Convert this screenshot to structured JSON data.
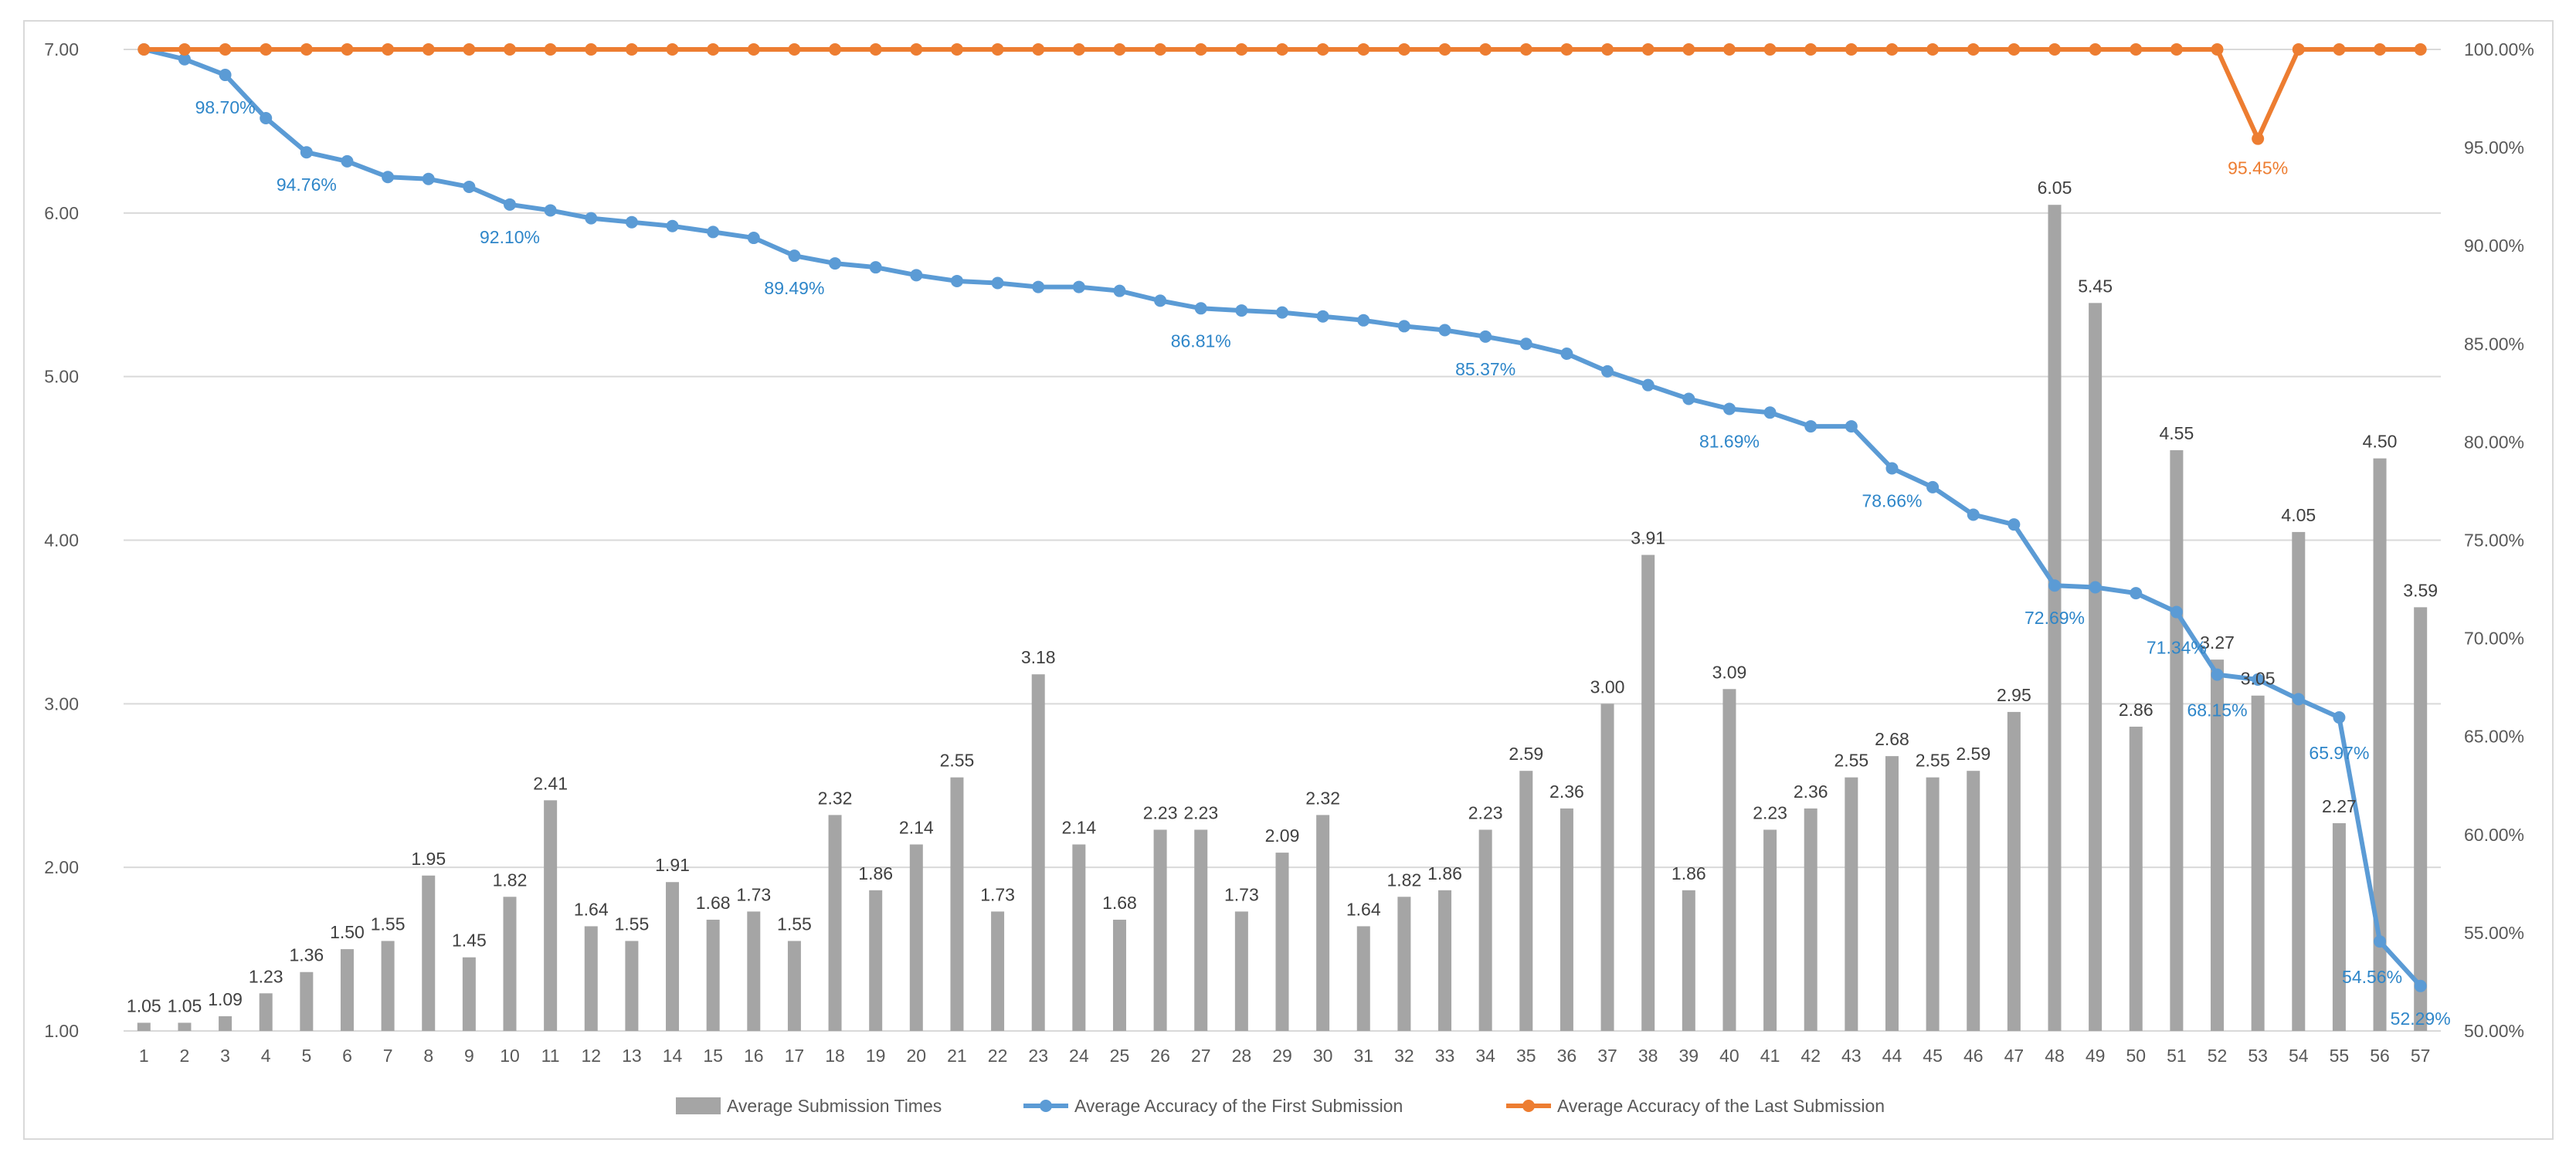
{
  "chart_data": {
    "type": "bar",
    "title": "",
    "categories": [
      "1",
      "2",
      "3",
      "4",
      "5",
      "6",
      "7",
      "8",
      "9",
      "10",
      "11",
      "12",
      "13",
      "14",
      "15",
      "16",
      "17",
      "18",
      "19",
      "20",
      "21",
      "22",
      "23",
      "24",
      "25",
      "26",
      "27",
      "28",
      "29",
      "30",
      "31",
      "32",
      "33",
      "34",
      "35",
      "36",
      "37",
      "38",
      "39",
      "40",
      "41",
      "42",
      "43",
      "44",
      "45",
      "46",
      "47",
      "48",
      "49",
      "50",
      "51",
      "52",
      "53",
      "54",
      "55",
      "56",
      "57"
    ],
    "y_left": {
      "min": 1.0,
      "max": 7.0,
      "step": 1.0,
      "ticks": [
        "1.00",
        "2.00",
        "3.00",
        "4.00",
        "5.00",
        "6.00",
        "7.00"
      ]
    },
    "y_right": {
      "min": 50,
      "max": 100,
      "step": 5,
      "ticks": [
        "50.00%",
        "55.00%",
        "60.00%",
        "65.00%",
        "70.00%",
        "75.00%",
        "80.00%",
        "85.00%",
        "90.00%",
        "95.00%",
        "100.00%"
      ]
    },
    "grid": true,
    "legend_position": "bottom",
    "colors": {
      "bars": "#a5a5a5",
      "first": "#5b9bd5",
      "last": "#ed7d31",
      "first_label": "#2e86c9",
      "last_label": "#ed7d31",
      "grid": "#d9d9d9"
    },
    "series": [
      {
        "name": "Average Submission Times",
        "type": "bar",
        "axis": "left",
        "values": [
          1.05,
          1.05,
          1.09,
          1.23,
          1.36,
          1.5,
          1.55,
          1.95,
          1.45,
          1.82,
          2.41,
          1.64,
          1.55,
          1.91,
          1.68,
          1.73,
          1.55,
          2.32,
          1.86,
          2.14,
          2.55,
          1.73,
          3.18,
          2.14,
          1.68,
          2.23,
          2.23,
          1.73,
          2.09,
          2.32,
          1.64,
          1.82,
          1.86,
          2.23,
          2.59,
          2.36,
          3.0,
          3.91,
          1.86,
          3.09,
          2.23,
          2.36,
          2.55,
          2.68,
          2.55,
          2.59,
          2.95,
          6.05,
          5.45,
          2.86,
          4.55,
          3.27,
          3.05,
          4.05,
          2.27,
          4.5,
          3.59
        ],
        "labels": [
          "1.05",
          "1.05",
          "1.09",
          "1.23",
          "1.36",
          "1.50",
          "1.55",
          "1.95",
          "1.45",
          "1.82",
          "2.41",
          "1.64",
          "1.55",
          "1.91",
          "1.68",
          "1.73",
          "1.55",
          "2.32",
          "1.86",
          "2.14",
          "2.55",
          "1.73",
          "3.18",
          "2.14",
          "1.68",
          "2.23",
          "2.23",
          "1.73",
          "2.09",
          "2.32",
          "1.64",
          "1.82",
          "1.86",
          "2.23",
          "2.59",
          "2.36",
          "3.00",
          "3.91",
          "1.86",
          "3.09",
          "2.23",
          "2.36",
          "2.55",
          "2.68",
          "2.55",
          "2.59",
          "2.95",
          "6.05",
          "5.45",
          "2.86",
          "4.55",
          "3.27",
          "3.05",
          "4.05",
          "2.27",
          "4.50",
          "3.59"
        ]
      },
      {
        "name": "Average Accuracy of the First Submission",
        "type": "line",
        "axis": "right",
        "values": [
          100.0,
          99.5,
          98.7,
          96.5,
          94.76,
          94.3,
          93.5,
          93.4,
          93.0,
          92.1,
          91.8,
          91.4,
          91.2,
          91.0,
          90.7,
          90.4,
          89.49,
          89.1,
          88.9,
          88.5,
          88.2,
          88.1,
          87.9,
          87.9,
          87.7,
          87.2,
          86.81,
          86.7,
          86.6,
          86.4,
          86.2,
          85.9,
          85.7,
          85.37,
          85.0,
          84.5,
          83.6,
          82.9,
          82.2,
          81.69,
          81.5,
          80.8,
          80.8,
          78.66,
          77.7,
          76.3,
          75.8,
          72.69,
          72.6,
          72.3,
          71.34,
          68.15,
          67.9,
          66.9,
          65.97,
          54.56,
          52.29
        ],
        "annotations": [
          {
            "index": 2,
            "label": "98.70%"
          },
          {
            "index": 4,
            "label": "94.76%"
          },
          {
            "index": 9,
            "label": "92.10%"
          },
          {
            "index": 16,
            "label": "89.49%"
          },
          {
            "index": 26,
            "label": "86.81%"
          },
          {
            "index": 33,
            "label": "85.37%"
          },
          {
            "index": 39,
            "label": "81.69%"
          },
          {
            "index": 43,
            "label": "78.66%"
          },
          {
            "index": 47,
            "label": "72.69%"
          },
          {
            "index": 50,
            "label": "71.34%"
          },
          {
            "index": 51,
            "label": "68.15%"
          },
          {
            "index": 54,
            "label": "65.97%"
          },
          {
            "index": 55,
            "label": "54.56%"
          },
          {
            "index": 56,
            "label": "52.29%"
          }
        ]
      },
      {
        "name": "Average Accuracy of the Last Submission",
        "type": "line",
        "axis": "right",
        "values": [
          100,
          100,
          100,
          100,
          100,
          100,
          100,
          100,
          100,
          100,
          100,
          100,
          100,
          100,
          100,
          100,
          100,
          100,
          100,
          100,
          100,
          100,
          100,
          100,
          100,
          100,
          100,
          100,
          100,
          100,
          100,
          100,
          100,
          100,
          100,
          100,
          100,
          100,
          100,
          100,
          100,
          100,
          100,
          100,
          100,
          100,
          100,
          100,
          100,
          100,
          100,
          100,
          95.45,
          100,
          100,
          100,
          100
        ],
        "annotations": [
          {
            "index": 52,
            "label": "95.45%"
          }
        ]
      }
    ]
  }
}
